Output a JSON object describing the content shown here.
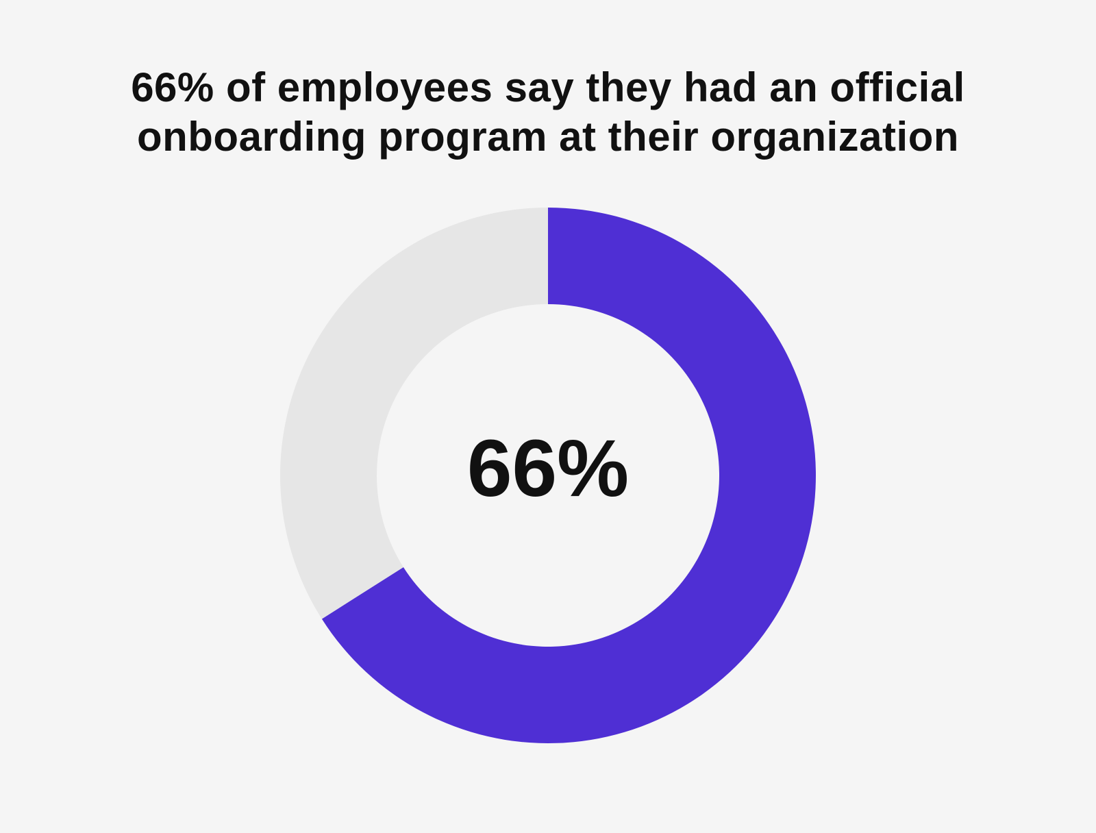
{
  "chart_data": {
    "type": "pie",
    "donut": true,
    "title_lines": [
      "66% of employees say they had an official",
      "onboarding program at their organization"
    ],
    "center_label": "66%",
    "values": [
      66,
      34
    ],
    "colors": [
      "#4f2fd4",
      "#e6e6e6"
    ]
  }
}
